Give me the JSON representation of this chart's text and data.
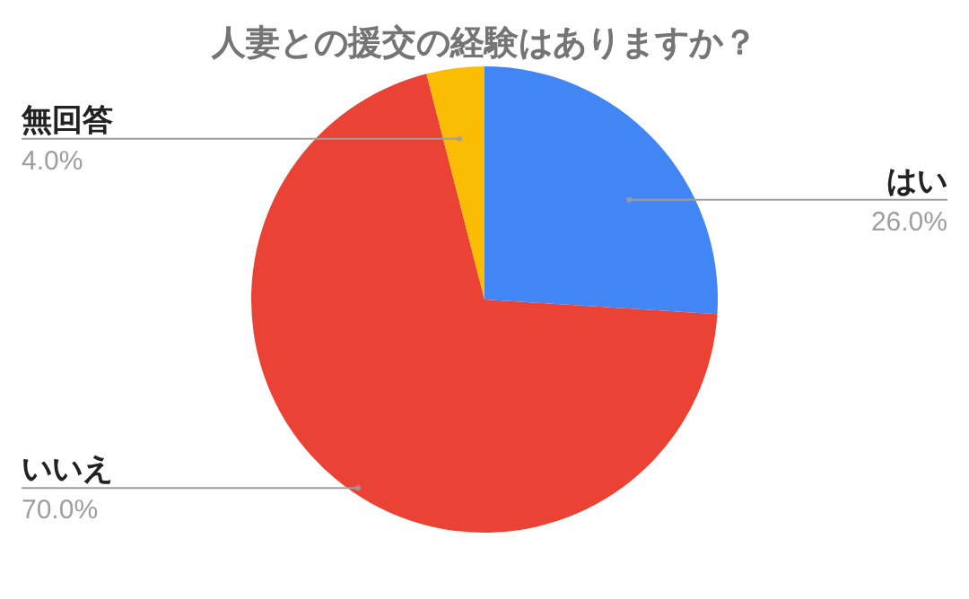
{
  "chart_data": {
    "type": "pie",
    "title": "人妻との援交の経験はありますか？",
    "categories": [
      "はい",
      "いいえ",
      "無回答"
    ],
    "values": [
      26,
      70,
      4
    ],
    "colors": [
      "#4285f4",
      "#ea4335",
      "#fbbc04"
    ],
    "value_labels": [
      "26.0%",
      "70.0%",
      "4.0%"
    ],
    "legend": false
  }
}
